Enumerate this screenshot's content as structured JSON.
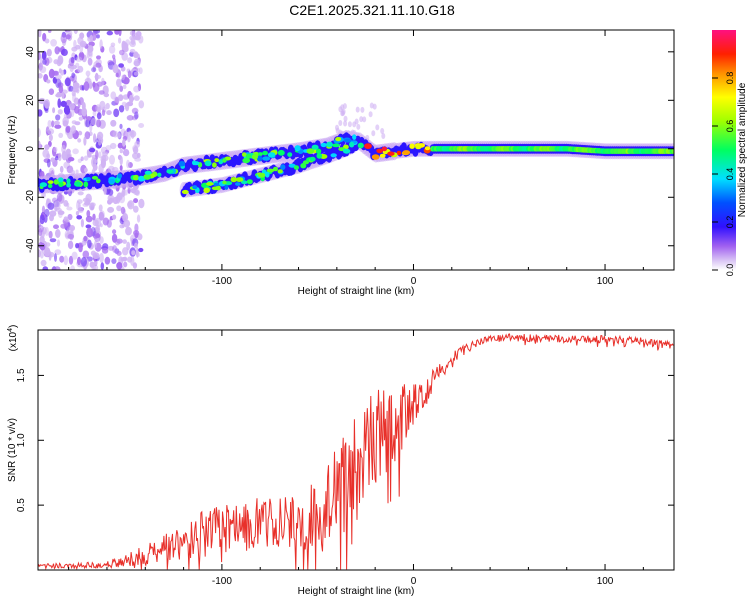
{
  "title": "C2E1.2025.321.11.10.G18",
  "chart_data": [
    {
      "type": "heatmap",
      "title": "C2E1.2025.321.11.10.G18",
      "xlabel": "Height of straight line (km)",
      "ylabel": "Frequency (Hz)",
      "xlim": [
        -196,
        136
      ],
      "ylim": [
        -50,
        49
      ],
      "xticks": [
        -100,
        0,
        100
      ],
      "xtick_labels": [
        "-100",
        "0",
        "100"
      ],
      "yticks": [
        -40,
        -20,
        0,
        20,
        40
      ],
      "ytick_labels": [
        "-40",
        "-20",
        "0",
        "20",
        "40"
      ],
      "colorbar": {
        "label": "Normalized spectral amplitude",
        "range": [
          0,
          1
        ],
        "ticks": [
          0.0,
          0.2,
          0.4,
          0.6,
          0.8
        ],
        "tick_labels": [
          "0.0",
          "0.2",
          "0.4",
          "0.6",
          "0.8"
        ]
      },
      "ridges": [
        {
          "name": "main ridge",
          "points": [
            [
              -196,
              -15
            ],
            [
              -180,
              -14
            ],
            [
              -160,
              -13
            ],
            [
              -145,
              -12
            ],
            [
              -130,
              -10
            ],
            [
              -120,
              -7
            ],
            [
              -100,
              -5
            ],
            [
              -80,
              -3
            ],
            [
              -60,
              -1
            ],
            [
              -45,
              1
            ],
            [
              -35,
              4
            ],
            [
              -28,
              3
            ],
            [
              -20,
              -2
            ],
            [
              -10,
              -1
            ],
            [
              0,
              0
            ],
            [
              20,
              0
            ],
            [
              50,
              0
            ],
            [
              80,
              0
            ],
            [
              100,
              -1
            ],
            [
              120,
              -1
            ],
            [
              136,
              -1
            ]
          ]
        },
        {
          "name": "branch ridge",
          "points": [
            [
              -120,
              -17
            ],
            [
              -100,
              -15
            ],
            [
              -80,
              -11
            ],
            [
              -60,
              -7
            ],
            [
              -45,
              -3
            ],
            [
              -35,
              0
            ],
            [
              -30,
              2
            ]
          ]
        }
      ],
      "noise_region_x": [
        -196,
        -142
      ]
    },
    {
      "type": "line",
      "xlabel": "Height of straight line (km)",
      "ylabel": "SNR (10 * v/v)",
      "y_multiplier_label": "(x10",
      "y_multiplier_exponent": "4",
      "xlim": [
        -196,
        136
      ],
      "ylim": [
        0,
        18.5
      ],
      "xticks": [
        -100,
        0,
        100
      ],
      "xtick_labels": [
        "-100",
        "0",
        "100"
      ],
      "yticks": [
        5,
        10,
        15
      ],
      "ytick_labels": [
        "0.5",
        "1.0",
        "1.5"
      ],
      "series": [
        {
          "name": "SNR",
          "color": "#e8302a",
          "x": [
            -196,
            -180,
            -160,
            -150,
            -140,
            -130,
            -120,
            -110,
            -100,
            -90,
            -80,
            -70,
            -60,
            -50,
            -40,
            -30,
            -20,
            -10,
            0,
            10,
            20,
            30,
            40,
            50,
            60,
            80,
            100,
            120,
            136
          ],
          "y": [
            0.4,
            0.3,
            0.4,
            0.7,
            1.2,
            1.7,
            2.3,
            2.8,
            3.1,
            3.4,
            3.6,
            3.6,
            3.8,
            4.3,
            6.2,
            8.7,
            10.3,
            11.1,
            13.0,
            14.6,
            16.3,
            17.3,
            17.8,
            17.9,
            17.9,
            17.8,
            17.8,
            17.6,
            17.3
          ],
          "noise_amplitude": [
            0.2,
            0.2,
            0.3,
            0.5,
            0.8,
            1.0,
            1.5,
            1.8,
            1.9,
            2.0,
            2.0,
            2.1,
            2.2,
            2.6,
            3.5,
            4.0,
            3.8,
            3.0,
            2.0,
            1.0,
            0.5,
            0.3,
            0.3,
            0.3,
            0.3,
            0.3,
            0.3,
            0.3,
            0.3
          ]
        }
      ]
    }
  ]
}
